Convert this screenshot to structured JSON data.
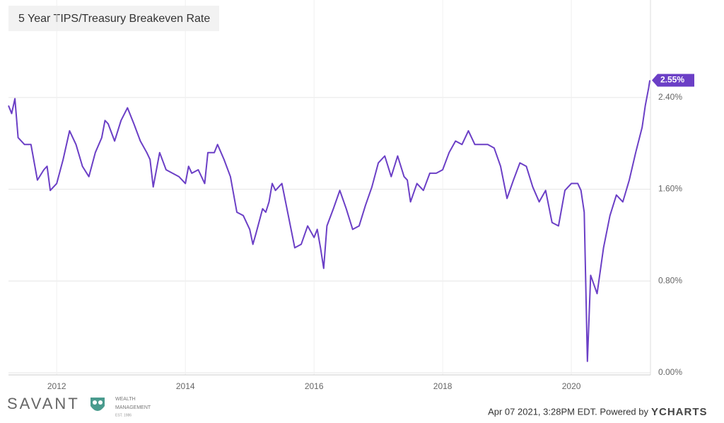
{
  "chart_data": {
    "type": "line",
    "title": "5 Year TIPS/Treasury Breakeven Rate",
    "x": [
      2011.25,
      2011.3,
      2011.35,
      2011.4,
      2011.5,
      2011.6,
      2011.7,
      2011.8,
      2011.85,
      2011.9,
      2012.0,
      2012.1,
      2012.2,
      2012.3,
      2012.4,
      2012.5,
      2012.6,
      2012.7,
      2012.75,
      2012.8,
      2012.9,
      2013.0,
      2013.1,
      2013.2,
      2013.3,
      2013.4,
      2013.45,
      2013.5,
      2013.6,
      2013.7,
      2013.8,
      2013.9,
      2014.0,
      2014.05,
      2014.1,
      2014.2,
      2014.3,
      2014.35,
      2014.45,
      2014.5,
      2014.6,
      2014.7,
      2014.8,
      2014.9,
      2015.0,
      2015.05,
      2015.1,
      2015.2,
      2015.25,
      2015.3,
      2015.35,
      2015.4,
      2015.5,
      2015.6,
      2015.7,
      2015.8,
      2015.9,
      2016.0,
      2016.05,
      2016.1,
      2016.15,
      2016.2,
      2016.3,
      2016.4,
      2016.5,
      2016.6,
      2016.7,
      2016.8,
      2016.9,
      2017.0,
      2017.1,
      2017.2,
      2017.3,
      2017.4,
      2017.45,
      2017.5,
      2017.6,
      2017.7,
      2017.8,
      2017.9,
      2018.0,
      2018.1,
      2018.2,
      2018.3,
      2018.4,
      2018.5,
      2018.6,
      2018.7,
      2018.8,
      2018.9,
      2019.0,
      2019.1,
      2019.2,
      2019.3,
      2019.4,
      2019.5,
      2019.6,
      2019.7,
      2019.8,
      2019.9,
      2020.0,
      2020.1,
      2020.15,
      2020.2,
      2020.25,
      2020.3,
      2020.4,
      2020.5,
      2020.6,
      2020.7,
      2020.8,
      2020.9,
      2021.0,
      2021.1,
      2021.15,
      2021.2,
      2021.22
    ],
    "values": [
      2.33,
      2.26,
      2.39,
      2.05,
      1.99,
      1.99,
      1.68,
      1.77,
      1.8,
      1.59,
      1.65,
      1.86,
      2.11,
      1.99,
      1.8,
      1.71,
      1.92,
      2.05,
      2.2,
      2.17,
      2.02,
      2.2,
      2.31,
      2.17,
      2.02,
      1.92,
      1.86,
      1.62,
      1.92,
      1.77,
      1.74,
      1.71,
      1.65,
      1.8,
      1.74,
      1.77,
      1.65,
      1.92,
      1.92,
      1.99,
      1.86,
      1.71,
      1.4,
      1.37,
      1.25,
      1.12,
      1.22,
      1.43,
      1.4,
      1.49,
      1.65,
      1.59,
      1.65,
      1.37,
      1.09,
      1.12,
      1.28,
      1.18,
      1.25,
      1.09,
      0.91,
      1.28,
      1.43,
      1.59,
      1.43,
      1.25,
      1.28,
      1.46,
      1.62,
      1.83,
      1.89,
      1.71,
      1.89,
      1.71,
      1.68,
      1.49,
      1.65,
      1.59,
      1.74,
      1.74,
      1.77,
      1.92,
      2.02,
      1.99,
      2.11,
      1.99,
      1.99,
      1.99,
      1.96,
      1.8,
      1.52,
      1.68,
      1.83,
      1.8,
      1.62,
      1.49,
      1.59,
      1.31,
      1.28,
      1.59,
      1.65,
      1.65,
      1.59,
      1.4,
      0.1,
      0.85,
      0.69,
      1.09,
      1.37,
      1.55,
      1.49,
      1.68,
      1.92,
      2.14,
      2.33,
      2.48,
      2.55
    ],
    "value_labels": {
      "116": "2.55%"
    },
    "color": "#6b3fc6",
    "xlim": [
      2011.25,
      2021.23
    ],
    "xticks": [
      2012,
      2014,
      2016,
      2018,
      2020
    ],
    "ylim": [
      0,
      3.25
    ],
    "yticks": [
      {
        "value": 0,
        "label": "0.00%"
      },
      {
        "value": 0.8,
        "label": "0.80%"
      },
      {
        "value": 1.6,
        "label": "1.60%"
      },
      {
        "value": 2.4,
        "label": "2.40%"
      }
    ],
    "grid": true
  },
  "footer": {
    "brand": "SAVANT",
    "brand_line1": "WEALTH",
    "brand_line2": "MANAGEMENT",
    "brand_est": "EST. 1986",
    "timestamp": "Apr 07 2021, 3:28PM EDT. Powered by",
    "provider": "YCHARTS"
  }
}
